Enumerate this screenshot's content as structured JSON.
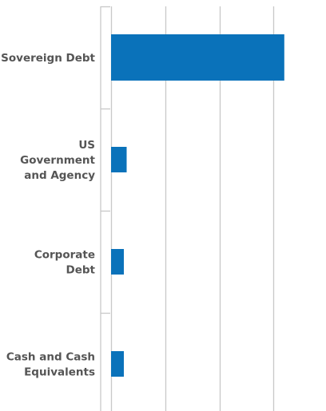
{
  "chart_data": {
    "type": "bar",
    "orientation": "horizontal",
    "categories": [
      [
        "Sovereign Debt"
      ],
      [
        "US",
        "Government",
        "and Agency"
      ],
      [
        "Corporate",
        "Debt"
      ],
      [
        "Cash and Cash",
        "Equivalents"
      ]
    ],
    "values": [
      80,
      7.2,
      5.9,
      5.9
    ],
    "xlim": [
      0,
      100
    ],
    "x_gridlines": [
      0,
      25,
      50,
      75,
      100
    ],
    "grid": true,
    "legend": "none",
    "title": "",
    "xlabel": "",
    "ylabel": "",
    "colors": {
      "bar": "#0A72BA",
      "grid": "#c8c8c8",
      "label": "#555555"
    }
  }
}
